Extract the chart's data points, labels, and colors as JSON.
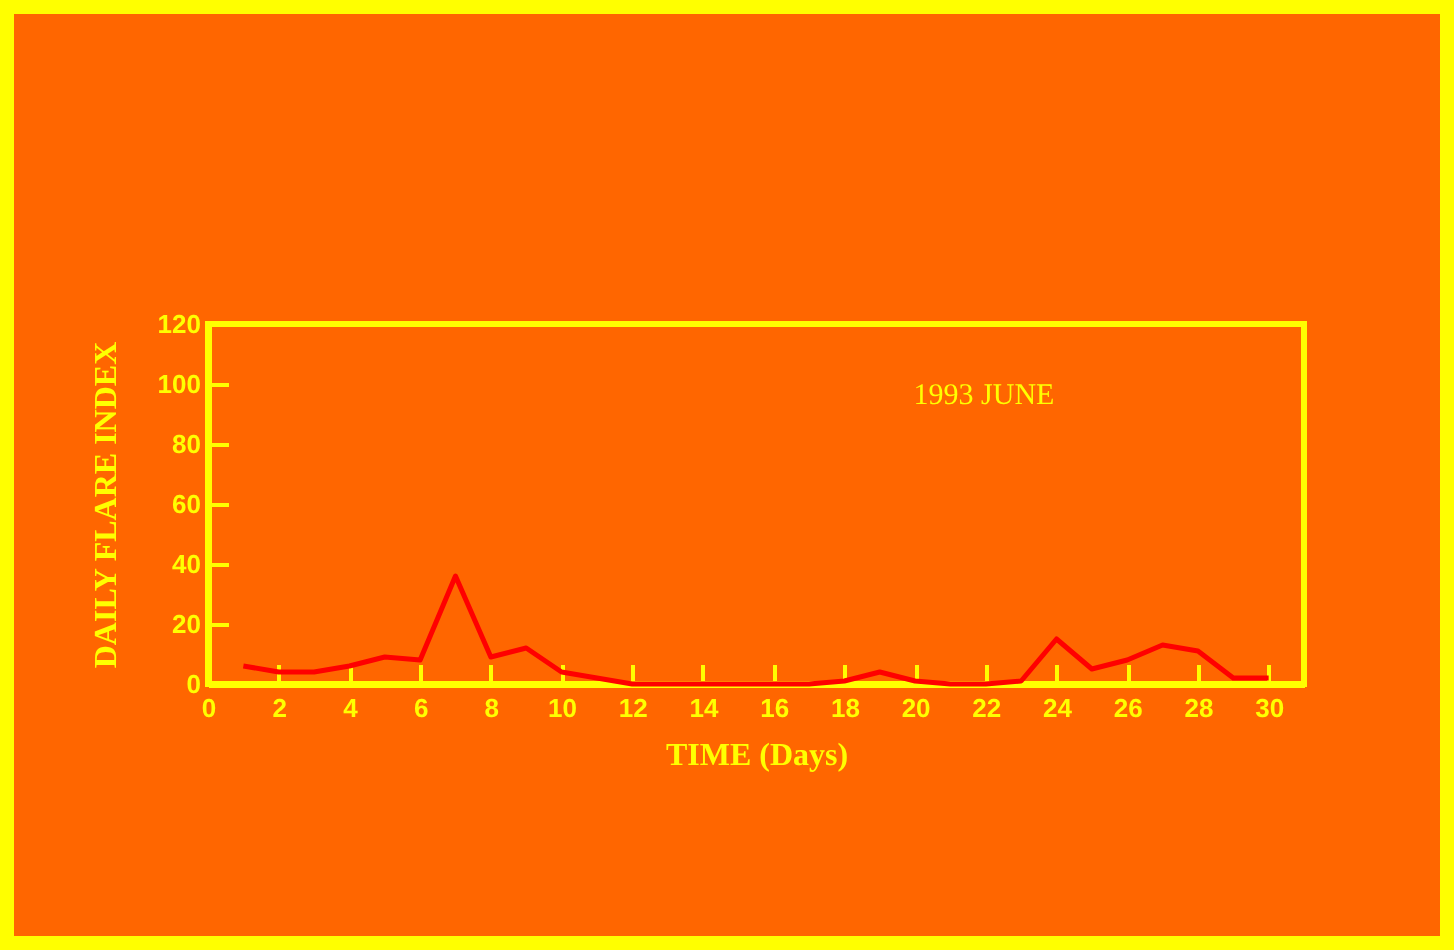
{
  "chart_data": {
    "type": "line",
    "xlabel": "TIME (Days)",
    "ylabel": "DAILY FLARE INDEX",
    "annotations": [
      "1993 JUNE"
    ],
    "x": [
      1,
      2,
      3,
      4,
      5,
      6,
      7,
      8,
      9,
      10,
      11,
      12,
      13,
      14,
      15,
      16,
      17,
      18,
      19,
      20,
      21,
      22,
      23,
      24,
      25,
      26,
      27,
      28,
      29,
      30
    ],
    "series": [
      {
        "color": "#ff0000",
        "values": [
          6,
          4,
          4,
          6,
          9,
          8,
          36,
          9,
          12,
          4,
          2,
          0,
          0,
          0,
          0,
          0,
          0,
          1,
          4,
          1,
          0,
          0,
          1,
          15,
          5,
          8,
          13,
          11,
          2,
          2
        ]
      }
    ],
    "xlim": [
      0,
      31
    ],
    "xticks": [
      0,
      2,
      4,
      6,
      8,
      10,
      12,
      14,
      16,
      18,
      20,
      22,
      24,
      26,
      28,
      30
    ],
    "ylim": [
      0,
      120
    ],
    "yticks": [
      0,
      20,
      40,
      60,
      80,
      100,
      120
    ],
    "grid": false,
    "legend": false,
    "marker": "none",
    "line_style": "solid"
  }
}
